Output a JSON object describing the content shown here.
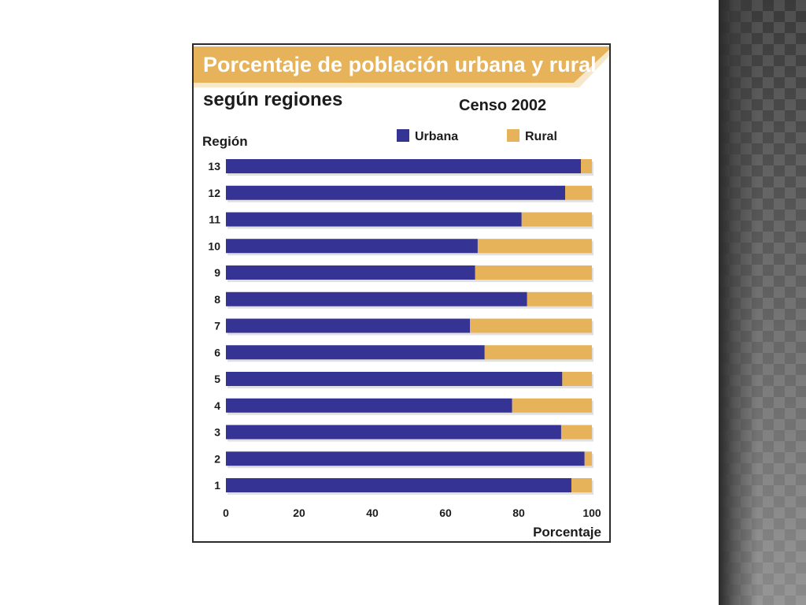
{
  "colors": {
    "urban": "#353394",
    "rural": "#e6b25a",
    "banner": "#e6b25a",
    "text": "#1c1c1c"
  },
  "chart_data": {
    "type": "bar",
    "orientation": "horizontal",
    "stacked": true,
    "title": "Porcentaje de población urbana y rural",
    "subtitle": "según regiones",
    "annotation": "Censo 2002",
    "ylabel": "Región",
    "xlabel": "Porcentaje",
    "xlim": [
      0,
      100
    ],
    "xticks": [
      0,
      20,
      40,
      60,
      80,
      100
    ],
    "legend_position": "top-right",
    "grid": false,
    "categories": [
      "13",
      "12",
      "11",
      "10",
      "9",
      "8",
      "7",
      "6",
      "5",
      "4",
      "3",
      "2",
      "1"
    ],
    "series": [
      {
        "name": "Urbana",
        "values": [
          97,
          92.7,
          80.8,
          68.8,
          68.1,
          82.3,
          66.7,
          70.7,
          91.9,
          78.2,
          91.6,
          98,
          94.4
        ]
      },
      {
        "name": "Rural",
        "values": [
          3,
          7.3,
          19.2,
          31.2,
          31.9,
          17.7,
          33.3,
          29.3,
          8.1,
          21.8,
          8.4,
          2,
          5.6
        ]
      }
    ]
  }
}
